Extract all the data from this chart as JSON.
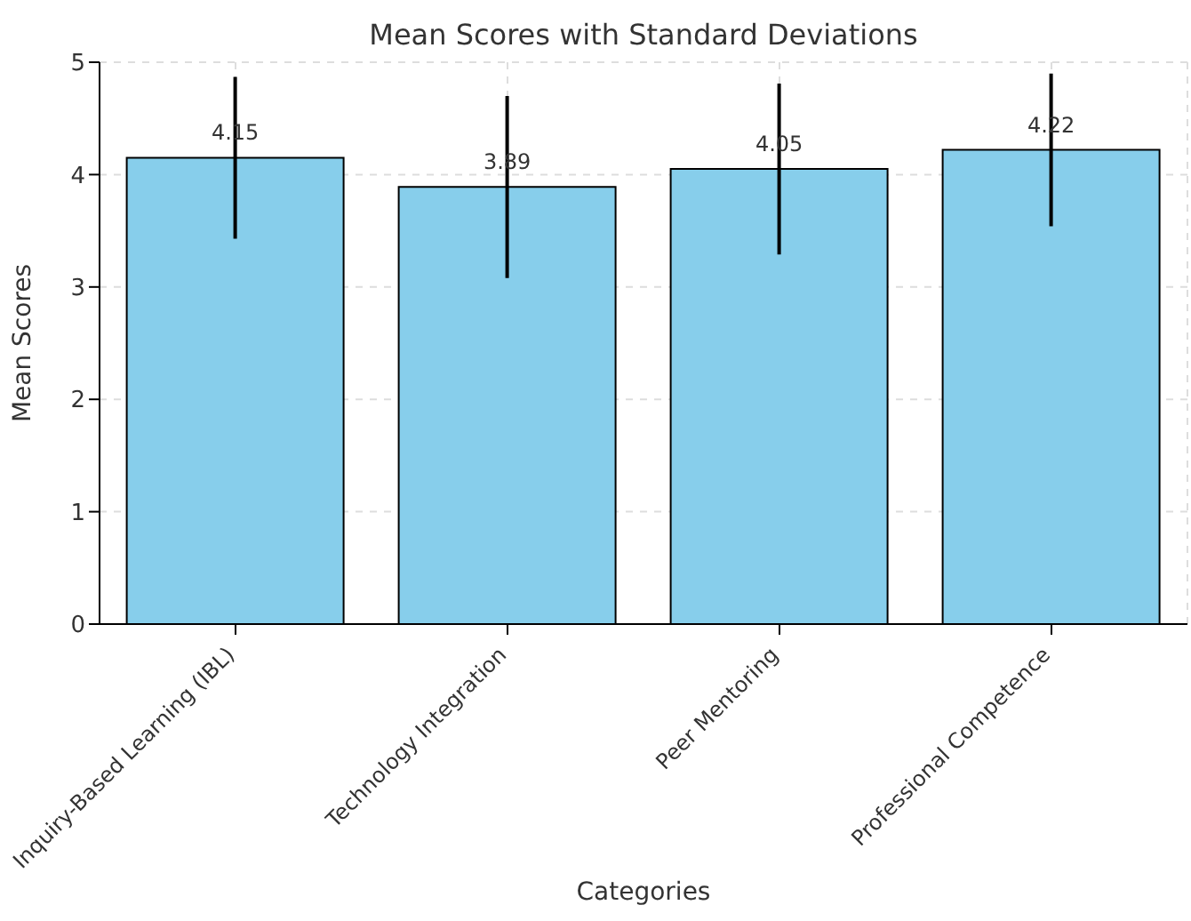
{
  "chart_data": {
    "type": "bar",
    "title": "Mean Scores with Standard Deviations",
    "xlabel": "Categories",
    "ylabel": "Mean Scores",
    "categories": [
      "Inquiry-Based Learning (IBL)",
      "Technology Integration",
      "Peer Mentoring",
      "Professional Competence"
    ],
    "values": [
      4.15,
      3.89,
      4.05,
      4.22
    ],
    "errors": [
      0.72,
      0.81,
      0.76,
      0.68
    ],
    "color": "#87ceeb",
    "ylim": [
      0,
      5
    ],
    "yticks": [
      0,
      1,
      2,
      3,
      4,
      5
    ],
    "grid": true,
    "data_labels": true
  }
}
